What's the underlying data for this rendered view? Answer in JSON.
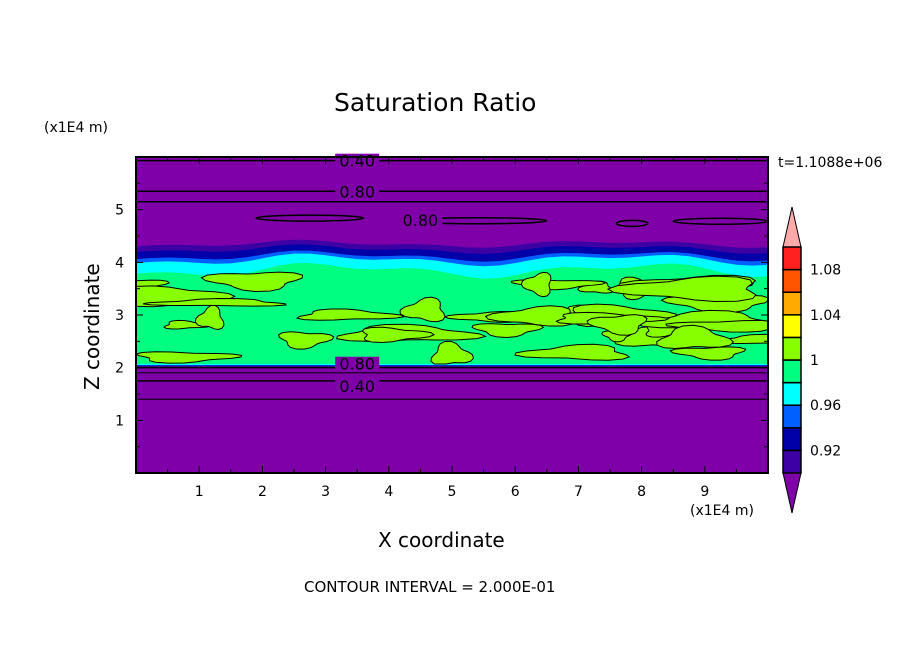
{
  "chart_data": {
    "type": "heatmap",
    "title": "Saturation Ratio",
    "xlabel": "X coordinate",
    "ylabel": "Z coordinate",
    "x_unit": "(x1E4 m)",
    "y_unit": "(x1E4 m)",
    "xlim": [
      0,
      10
    ],
    "ylim": [
      0,
      6
    ],
    "x_ticks": [
      "1",
      "2",
      "3",
      "4",
      "5",
      "6",
      "7",
      "8",
      "9"
    ],
    "y_ticks": [
      "1",
      "2",
      "3",
      "4",
      "5"
    ],
    "time_label": "t=1.1088e+06",
    "footer": "CONTOUR INTERVAL = 2.000E-01",
    "colorbar": {
      "levels": [
        0.9,
        0.92,
        0.94,
        0.96,
        0.98,
        1.0,
        1.02,
        1.04,
        1.06,
        1.08,
        1.1
      ],
      "tick_labels": [
        {
          "value": 0.92,
          "label": "0.92"
        },
        {
          "value": 0.96,
          "label": "0.96"
        },
        {
          "value": 1.0,
          "label": "1"
        },
        {
          "value": 1.04,
          "label": "1.04"
        },
        {
          "value": 1.08,
          "label": "1.08"
        }
      ],
      "colors": [
        "#3c00a4",
        "#0000a8",
        "#0060ff",
        "#00ffff",
        "#00ff80",
        "#88ff00",
        "#ffff00",
        "#ffaa00",
        "#ff5500",
        "#ff2020"
      ],
      "under_color": "#7f00a8",
      "over_color": "#ffaaaa"
    },
    "contour_labels": [
      {
        "text": "0.40",
        "x": 3.5,
        "z": 5.93
      },
      {
        "text": "0.80",
        "x": 3.5,
        "z": 5.65
      },
      {
        "text": "0.80",
        "x": 4.5,
        "z": 4.8
      },
      {
        "text": "0.80",
        "x": 3.5,
        "z": 1.98
      },
      {
        "text": "0.40",
        "x": 3.5,
        "z": 1.75
      }
    ],
    "regions": [
      {
        "description_value": "<0.90",
        "z_range": [
          0,
          2.0
        ]
      },
      {
        "description_value": "0.98-1.00 with 1.00-1.02 patches",
        "z_range": [
          2.05,
          3.9
        ]
      },
      {
        "description_value": "0.92-0.98 transition",
        "z_range": [
          3.9,
          4.35
        ]
      },
      {
        "description_value": "<0.90",
        "z_range": [
          4.35,
          6
        ]
      }
    ]
  }
}
